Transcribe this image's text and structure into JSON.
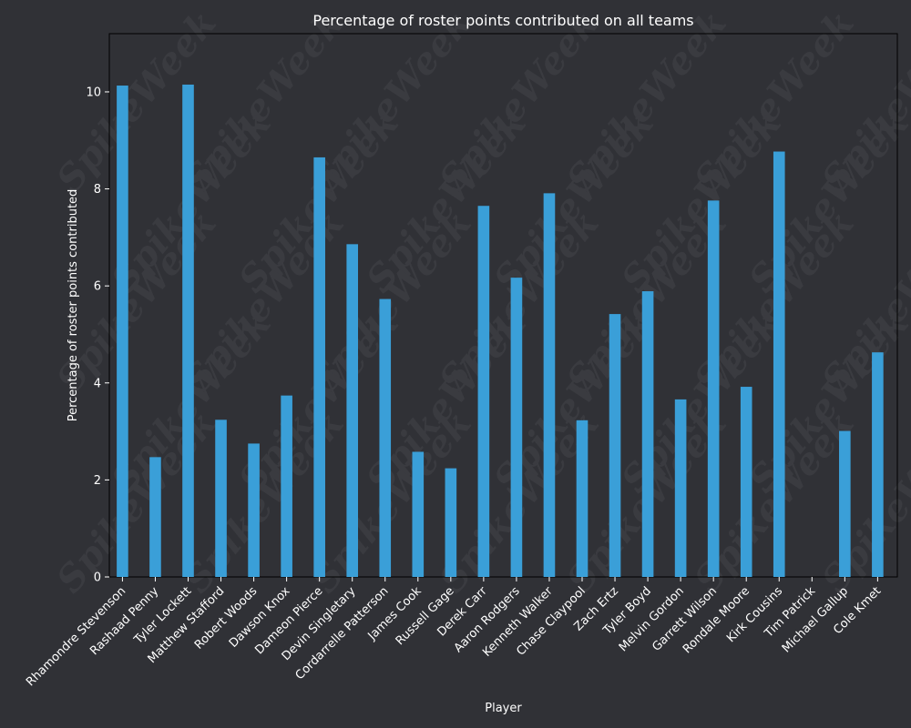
{
  "chart_data": {
    "type": "bar",
    "title": "Percentage of roster points contributed on all teams",
    "xlabel": "Player",
    "ylabel": "Percentage of roster points contributed",
    "ylim": [
      0,
      11.2
    ],
    "yticks": [
      0,
      2,
      4,
      6,
      8,
      10
    ],
    "grid": false,
    "bar_color": "#3a9fd8",
    "watermark": "SpikeWeek",
    "categories": [
      "Rhamondre Stevenson",
      "Rashaad Penny",
      "Tyler Lockett",
      "Matthew Stafford",
      "Robert Woods",
      "Dawson Knox",
      "Dameon Pierce",
      "Devin Singletary",
      "Cordarrelle Patterson",
      "James Cook",
      "Russell Gage",
      "Derek Carr",
      "Aaron Rodgers",
      "Kenneth Walker",
      "Chase Claypool",
      "Zach Ertz",
      "Tyler Boyd",
      "Melvin Gordon",
      "Garrett Wilson",
      "Rondale Moore",
      "Kirk Cousins",
      "Tim Patrick",
      "Michael Gallup",
      "Cole Kmet"
    ],
    "values": [
      10.13,
      2.47,
      10.15,
      3.24,
      2.75,
      3.74,
      8.65,
      6.86,
      5.73,
      2.58,
      2.24,
      7.65,
      6.17,
      7.91,
      3.23,
      5.42,
      5.89,
      3.66,
      7.76,
      3.92,
      8.77,
      0.0,
      3.01,
      4.63
    ]
  }
}
